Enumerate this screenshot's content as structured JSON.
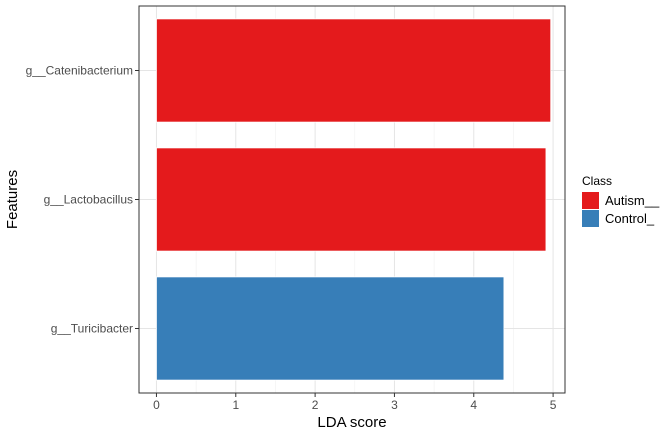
{
  "chart_data": {
    "type": "bar",
    "orientation": "horizontal",
    "categories": [
      "g__Catenibacterium",
      "g__Lactobacillus",
      "g__Turicibacter"
    ],
    "values": [
      4.97,
      4.91,
      4.38
    ],
    "classes": [
      "Autism__",
      "Autism__",
      "Control_"
    ],
    "xlabel": "LDA score",
    "ylabel": "Features",
    "xlim": [
      -0.22,
      5.15
    ],
    "xticks": [
      0,
      1,
      2,
      3,
      4,
      5
    ],
    "grid": true,
    "legend": {
      "title": "Class",
      "position": "right",
      "entries": [
        {
          "label": "Autism__",
          "color": "#e41a1c"
        },
        {
          "label": "Control_",
          "color": "#377eb8"
        }
      ]
    }
  }
}
